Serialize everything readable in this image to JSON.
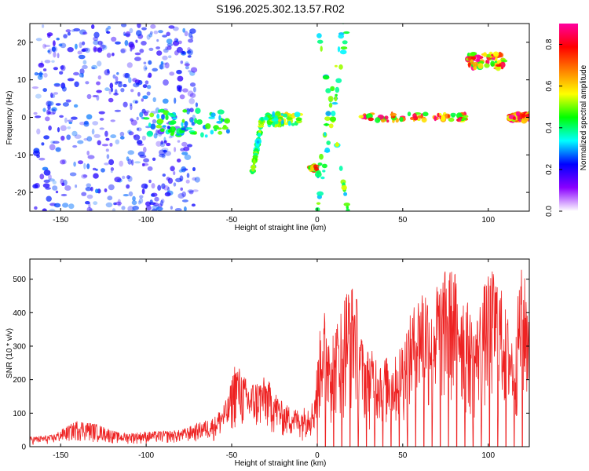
{
  "title": "S196.2025.302.13.57.R02",
  "chart_data": [
    {
      "type": "heatmap",
      "panel": "spectrogram",
      "xlabel": "Height of straight line (km)",
      "ylabel": "Frequency (Hz)",
      "xlim": [
        -168,
        124
      ],
      "ylim": [
        -25,
        25
      ],
      "xticks": [
        -150,
        -100,
        -50,
        0,
        50,
        100
      ],
      "yticks": [
        -20,
        -10,
        0,
        10,
        20
      ],
      "colorbar": {
        "label": "Normalized spectral amplitude",
        "range": [
          0.0,
          0.9
        ],
        "ticks": [
          0.0,
          0.2,
          0.4,
          0.6,
          0.8
        ],
        "colors": [
          "#ffffff",
          "#8a00ff",
          "#0000ff",
          "#00ffff",
          "#00ff00",
          "#ffff00",
          "#ff8000",
          "#ff0000",
          "#ff00a0"
        ]
      },
      "features": [
        {
          "name": "noise band",
          "x": [
            -165,
            -70
          ],
          "freq": [
            -25,
            25
          ],
          "amplitude": 0.15
        },
        {
          "name": "mid trace",
          "x": [
            -100,
            -52
          ],
          "freq": [
            -5,
            2
          ],
          "amplitude": 0.35
        },
        {
          "name": "descending streak",
          "x": [
            -38,
            -32
          ],
          "freq": [
            -15,
            0
          ],
          "amplitude": 0.4
        },
        {
          "name": "zero line left",
          "x": [
            -30,
            -10
          ],
          "freq": [
            -2,
            1
          ],
          "amplitude": 0.45
        },
        {
          "name": "burst",
          "x": [
            -4,
            0
          ],
          "freq": [
            -14,
            -13
          ],
          "amplitude": 0.6
        },
        {
          "name": "diagonal streaks",
          "x": [
            0,
            18
          ],
          "freq": [
            -25,
            25
          ],
          "amplitude": 0.4
        },
        {
          "name": "zero line right",
          "x": [
            25,
            87
          ],
          "freq": [
            -1,
            1
          ],
          "amplitude": 0.7
        },
        {
          "name": "high band",
          "x": [
            88,
            110
          ],
          "freq": [
            13,
            17
          ],
          "amplitude": 0.7
        },
        {
          "name": "zero line far right",
          "x": [
            112,
            124
          ],
          "freq": [
            -1,
            1
          ],
          "amplitude": 0.8
        }
      ]
    },
    {
      "type": "line",
      "panel": "snr",
      "xlabel": "Height of straight line (km)",
      "ylabel": "SNR (10 * v/v)",
      "xlim": [
        -168,
        124
      ],
      "ylim": [
        0,
        560
      ],
      "xticks": [
        -150,
        -100,
        -50,
        0,
        50,
        100
      ],
      "yticks": [
        0,
        100,
        200,
        300,
        400,
        500
      ],
      "series": [
        {
          "name": "SNR",
          "color": "#ee2222",
          "envelope": [
            [
              -168,
              30
            ],
            [
              -155,
              35
            ],
            [
              -140,
              80
            ],
            [
              -130,
              70
            ],
            [
              -115,
              40
            ],
            [
              -100,
              45
            ],
            [
              -80,
              50
            ],
            [
              -70,
              70
            ],
            [
              -60,
              90
            ],
            [
              -52,
              150
            ],
            [
              -48,
              260
            ],
            [
              -40,
              190
            ],
            [
              -30,
              210
            ],
            [
              -20,
              130
            ],
            [
              -10,
              110
            ],
            [
              -2,
              140
            ],
            [
              3,
              430
            ],
            [
              8,
              350
            ],
            [
              12,
              380
            ],
            [
              17,
              480
            ],
            [
              22,
              490
            ],
            [
              27,
              300
            ],
            [
              35,
              280
            ],
            [
              45,
              260
            ],
            [
              52,
              360
            ],
            [
              57,
              430
            ],
            [
              62,
              500
            ],
            [
              67,
              450
            ],
            [
              72,
              510
            ],
            [
              77,
              540
            ],
            [
              82,
              520
            ],
            [
              87,
              450
            ],
            [
              92,
              360
            ],
            [
              97,
              480
            ],
            [
              102,
              530
            ],
            [
              106,
              510
            ],
            [
              110,
              420
            ],
            [
              115,
              330
            ],
            [
              119,
              540
            ],
            [
              124,
              470
            ]
          ]
        }
      ]
    }
  ]
}
